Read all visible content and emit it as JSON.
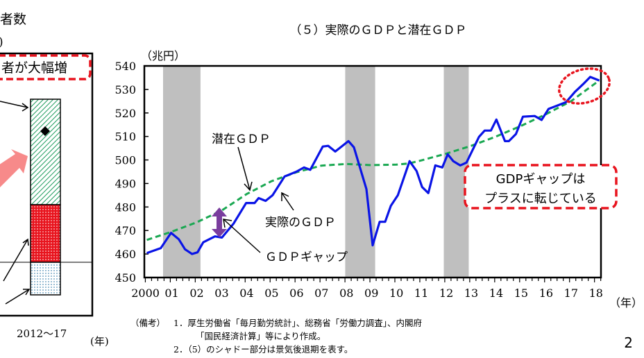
{
  "page_number": "2",
  "left_panel": {
    "title_fragment": "者数",
    "unit_fragment": ")",
    "callout": "者が大幅増",
    "period_label": "2012～17",
    "x_unit": "(年)"
  },
  "footnotes": {
    "label": "（備考）",
    "line1": "1．厚生労働省「毎月勤労統計」、総務省「労働力調査」、内閣府",
    "line1b": "「国民経済計算」等により作成。",
    "line2": "2．（5）のシャドー部分は景気後退期を表す。"
  },
  "colors": {
    "actual": "#0a14e6",
    "potential": "#1aa852",
    "shade": "#bfbfbf",
    "callout": "#e8141e",
    "gap_arrow": "#7a3d9e"
  },
  "chart_data": {
    "type": "line",
    "title": "（５）実際のＧＤＰと潜在ＧＤＰ",
    "ylabel": "（兆円）",
    "xlabel": "（年）",
    "ylim": [
      450,
      540
    ],
    "yticks": [
      "450",
      "460",
      "470",
      "480",
      "490",
      "500",
      "510",
      "520",
      "530",
      "540"
    ],
    "xlim": [
      1999.9,
      2018.2
    ],
    "xtick_labels": [
      "2000",
      "01",
      "02",
      "03",
      "04",
      "05",
      "06",
      "07",
      "08",
      "09",
      "10",
      "11",
      "12",
      "13",
      "14",
      "15",
      "16",
      "17",
      "18"
    ],
    "grid": false,
    "recessions": [
      [
        2000.65,
        2002.15
      ],
      [
        2007.95,
        2009.15
      ],
      [
        2011.9,
        2012.9
      ]
    ],
    "series": [
      {
        "name": "実際のＧＤＰ",
        "style": "solid",
        "x": [
          2000.0,
          2000.56,
          2000.97,
          2001.28,
          2001.53,
          2001.81,
          2002.03,
          2002.26,
          2002.73,
          2003.01,
          2003.48,
          2003.98,
          2004.32,
          2004.48,
          2004.76,
          2005.04,
          2005.52,
          2005.99,
          2006.3,
          2006.55,
          2007.05,
          2007.27,
          2007.55,
          2008.08,
          2008.3,
          2008.8,
          2009.05,
          2009.33,
          2009.55,
          2009.78,
          2010.06,
          2010.53,
          2010.81,
          2011.03,
          2011.28,
          2011.56,
          2011.84,
          2012.06,
          2012.28,
          2012.56,
          2012.81,
          2013.31,
          2013.54,
          2013.79,
          2014.01,
          2014.35,
          2014.51,
          2014.79,
          2015.07,
          2015.54,
          2015.82,
          2016.1,
          2016.8,
          2017.16,
          2017.49,
          2017.77,
          2018.13
        ],
        "y": [
          460.4,
          462.5,
          469,
          466.3,
          462,
          460,
          460.7,
          465,
          467.5,
          467,
          473,
          481.7,
          481.7,
          483.8,
          482.6,
          485,
          493,
          495,
          496.8,
          495.8,
          505.7,
          506,
          503.6,
          508,
          505.4,
          487.6,
          463.7,
          473.7,
          473.7,
          480.5,
          485,
          499.5,
          495.3,
          488.5,
          485.9,
          497.7,
          496.8,
          502.4,
          499.5,
          497.7,
          498.9,
          509.8,
          512.5,
          512.5,
          517.2,
          508,
          508,
          511,
          518.4,
          518.7,
          517,
          521.7,
          524.6,
          529,
          532.3,
          535.3,
          533.8
        ]
      },
      {
        "name": "潜在ＧＤＰ",
        "style": "dashed",
        "x": [
          2000.0,
          2001.0,
          2002.0,
          2003.0,
          2004.0,
          2005.0,
          2006.0,
          2007.0,
          2008.0,
          2009.0,
          2010.0,
          2010.5,
          2011.0,
          2012.0,
          2013.0,
          2014.0,
          2015.0,
          2016.0,
          2017.0,
          2018.13
        ],
        "y": [
          466,
          469.5,
          473.5,
          478.5,
          485.5,
          491,
          494.8,
          497.6,
          498.3,
          497.8,
          498,
          498.5,
          499.8,
          502.7,
          506,
          510,
          514.5,
          519.5,
          525,
          533.8
        ]
      }
    ],
    "annotations": {
      "potential_label": "潜在ＧＤＰ",
      "actual_label": "実際のＧＤＰ",
      "gap_label": "ＧＤＰギャップ",
      "callout_line1": "GDPギャップは",
      "callout_line2": "プラスに転じている"
    }
  }
}
